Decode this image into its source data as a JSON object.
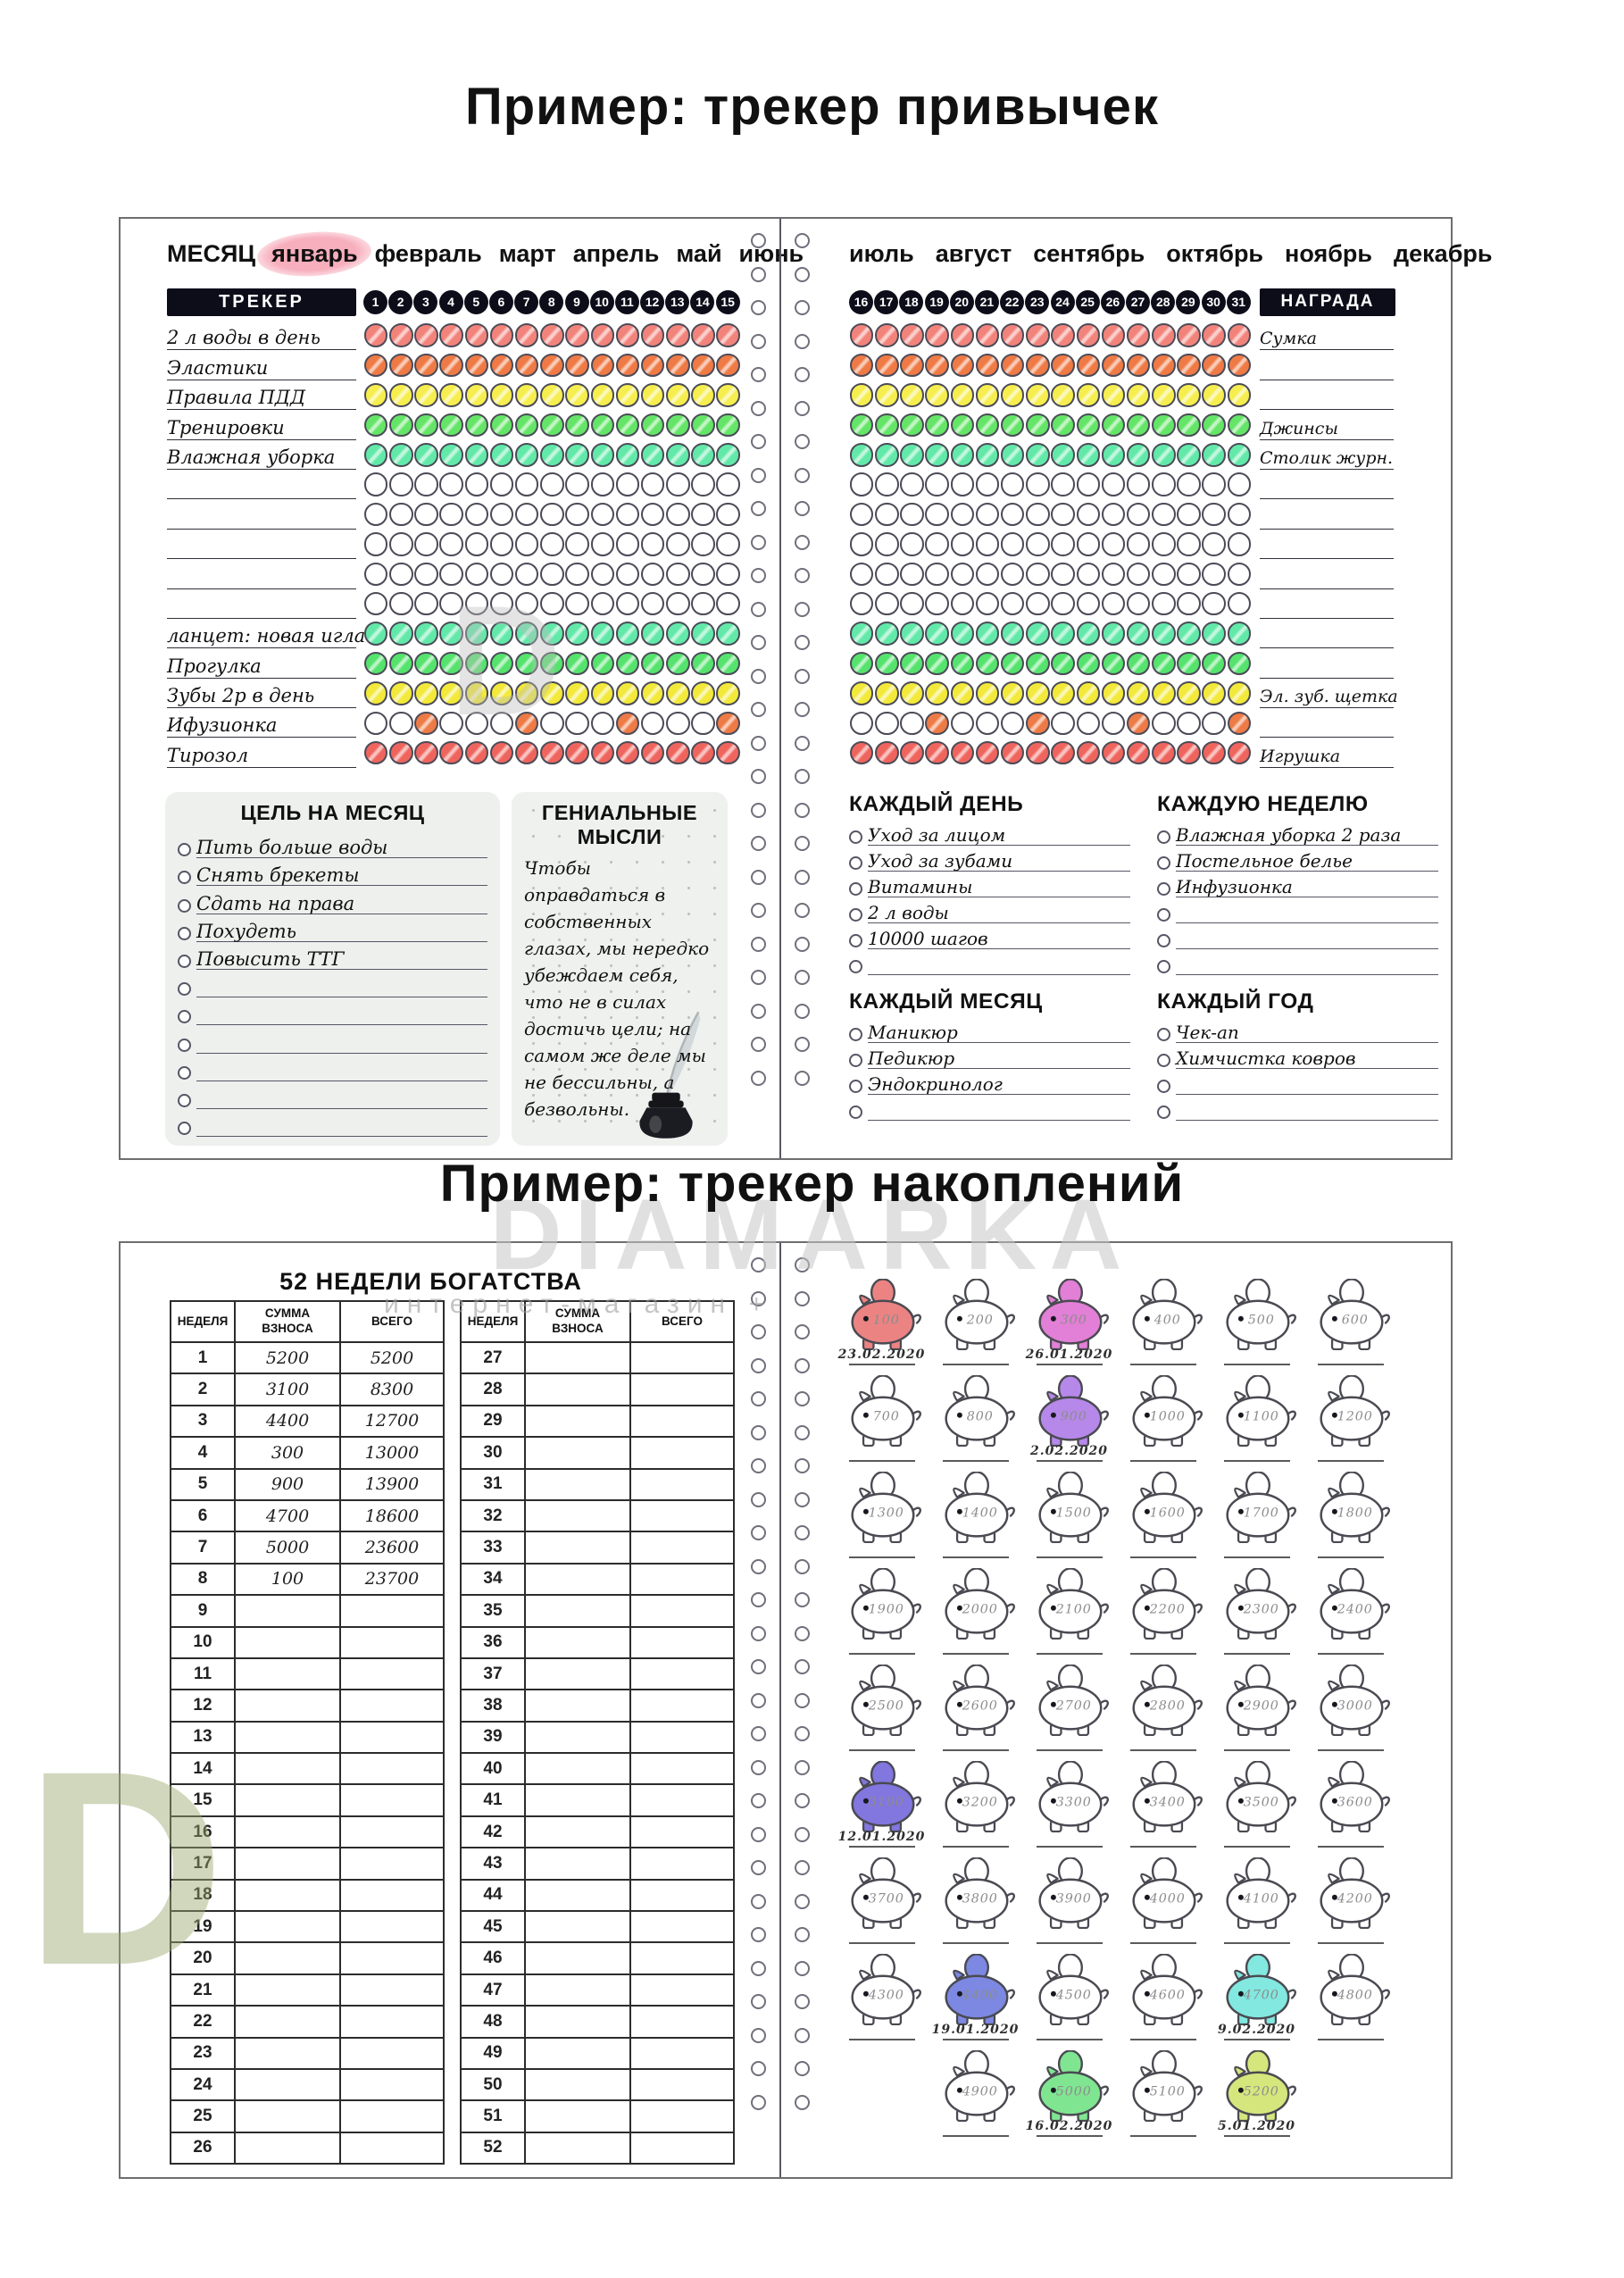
{
  "titles": {
    "habit": "Пример: трекер привычек",
    "savings": "Пример: трекер накоплений"
  },
  "watermarks": {
    "big": "DIAMARKA",
    "small": "интернет-магазин +",
    "letter": "D"
  },
  "habit": {
    "month_label": "МЕСЯЦ",
    "highlight_month": "январь",
    "months_left": [
      "январь",
      "февраль",
      "март",
      "апрель",
      "май",
      "июнь"
    ],
    "months_right": [
      "июль",
      "август",
      "сентябрь",
      "октябрь",
      "ноябрь",
      "декабрь"
    ],
    "tracker_label": "ТРЕКЕР",
    "reward_label": "НАГРАДА",
    "days_left": [
      1,
      15
    ],
    "days_right": [
      16,
      31
    ],
    "rows": [
      {
        "label": "2 л воды в день",
        "color": "#f2837b",
        "left": "all",
        "right": "all",
        "reward": "Сумка"
      },
      {
        "label": "Эластики",
        "color": "#ef7a45",
        "left": "all",
        "right": "all",
        "reward": ""
      },
      {
        "label": "Правила ПДД",
        "color": "#f6ee4e",
        "left": "all",
        "right": "all",
        "reward": ""
      },
      {
        "label": "Тренировки",
        "color": "#64e567",
        "left": "all",
        "right": "all",
        "reward": "Джинсы"
      },
      {
        "label": "Влажная уборка",
        "color": "#62e9a9",
        "left": "all",
        "right": "all",
        "reward": "Столик журн."
      },
      {
        "label": "",
        "color": "",
        "left": "none",
        "right": "none",
        "reward": ""
      },
      {
        "label": "",
        "color": "",
        "left": "none",
        "right": "none",
        "reward": ""
      },
      {
        "label": "",
        "color": "",
        "left": "none",
        "right": "none",
        "reward": ""
      },
      {
        "label": "",
        "color": "",
        "left": "none",
        "right": "none",
        "reward": ""
      },
      {
        "label": "",
        "color": "",
        "left": "none",
        "right": "none",
        "reward": ""
      },
      {
        "label": "ланцет: новая игла",
        "color": "#62e9a9",
        "left": "all",
        "right": "all",
        "reward": ""
      },
      {
        "label": "Прогулка",
        "color": "#55e36e",
        "left": "all",
        "right": "all",
        "reward": ""
      },
      {
        "label": "Зубы 2р в день",
        "color": "#f2e93a",
        "left": "all",
        "right": "all",
        "reward": "Эл. зуб. щетка"
      },
      {
        "label": "Ифузионка",
        "color": "#ee7a45",
        "left": [
          3,
          7,
          11,
          15
        ],
        "right": [
          19,
          23,
          27,
          31
        ],
        "reward": ""
      },
      {
        "label": "Тирозол",
        "color": "#ef655e",
        "left": "all",
        "right": "all",
        "reward": "Игрушка"
      }
    ],
    "goal": {
      "title": "ЦЕЛЬ НА МЕСЯЦ",
      "items": [
        "Пить больше воды",
        "Снять брекеты",
        "Сдать на права",
        "Похудеть",
        "Повысить ТТГ",
        "",
        "",
        "",
        "",
        "",
        ""
      ]
    },
    "thoughts": {
      "title": "ГЕНИАЛЬНЫЕ МЫСЛИ",
      "text": "Чтобы оправдаться в собственных глазах, мы нередко убеждаем себя, что не в силах достичь цели; на самом же деле мы не бессильны, а безвольны."
    },
    "daily": {
      "title": "КАЖДЫЙ ДЕНЬ",
      "items": [
        "Уход за лицом",
        "Уход за зубами",
        "Витамины",
        "2 л воды",
        "10000 шагов",
        ""
      ]
    },
    "weekly": {
      "title": "КАЖДУЮ НЕДЕЛЮ",
      "items": [
        "Влажная уборка 2 раза",
        "Постельное белье",
        "Инфузионка",
        "",
        "",
        ""
      ]
    },
    "monthly": {
      "title": "КАЖДЫЙ МЕСЯЦ",
      "items": [
        "Маникюр",
        "Педикюр",
        "Эндокринолог",
        ""
      ]
    },
    "yearly": {
      "title": "КАЖДЫЙ ГОД",
      "items": [
        "Чек-ап",
        "Химчистка ковров",
        "",
        ""
      ]
    }
  },
  "savings": {
    "title": "52 НЕДЕЛИ БОГАТСТВА",
    "headers": [
      "НЕДЕЛЯ",
      "СУММА ВЗНОСА",
      "ВСЕГО"
    ],
    "table1_weeks": [
      1,
      26
    ],
    "table2_weeks": [
      27,
      52
    ],
    "filled_weeks": [
      {
        "week": 1,
        "deposit": "5200",
        "total": "5200"
      },
      {
        "week": 2,
        "deposit": "3100",
        "total": "8300"
      },
      {
        "week": 3,
        "deposit": "4400",
        "total": "12700"
      },
      {
        "week": 4,
        "deposit": "300",
        "total": "13000"
      },
      {
        "week": 5,
        "deposit": "900",
        "total": "13900"
      },
      {
        "week": 6,
        "deposit": "4700",
        "total": "18600"
      },
      {
        "week": 7,
        "deposit": "5000",
        "total": "23600"
      },
      {
        "week": 8,
        "deposit": "100",
        "total": "23700"
      }
    ],
    "pigs": [
      {
        "amount": "100",
        "color": "#ec8383",
        "date": "23.02.2020"
      },
      {
        "amount": "200"
      },
      {
        "amount": "300",
        "color": "#e27fd6",
        "date": "26.01.2020"
      },
      {
        "amount": "400"
      },
      {
        "amount": "500"
      },
      {
        "amount": "600"
      },
      {
        "amount": "700"
      },
      {
        "amount": "800"
      },
      {
        "amount": "900",
        "color": "#b688ea",
        "date": "2.02.2020"
      },
      {
        "amount": "1000"
      },
      {
        "amount": "1100"
      },
      {
        "amount": "1200"
      },
      {
        "amount": "1300"
      },
      {
        "amount": "1400"
      },
      {
        "amount": "1500"
      },
      {
        "amount": "1600"
      },
      {
        "amount": "1700"
      },
      {
        "amount": "1800"
      },
      {
        "amount": "1900"
      },
      {
        "amount": "2000"
      },
      {
        "amount": "2100"
      },
      {
        "amount": "2200"
      },
      {
        "amount": "2300"
      },
      {
        "amount": "2400"
      },
      {
        "amount": "2500"
      },
      {
        "amount": "2600"
      },
      {
        "amount": "2700"
      },
      {
        "amount": "2800"
      },
      {
        "amount": "2900"
      },
      {
        "amount": "3000"
      },
      {
        "amount": "3100",
        "color": "#8276df",
        "date": "12.01.2020"
      },
      {
        "amount": "3200"
      },
      {
        "amount": "3300"
      },
      {
        "amount": "3400"
      },
      {
        "amount": "3500"
      },
      {
        "amount": "3600"
      },
      {
        "amount": "3700"
      },
      {
        "amount": "3800"
      },
      {
        "amount": "3900"
      },
      {
        "amount": "4000"
      },
      {
        "amount": "4100"
      },
      {
        "amount": "4200"
      },
      {
        "amount": "4300"
      },
      {
        "amount": "4400",
        "color": "#7c88e2",
        "date": "19.01.2020"
      },
      {
        "amount": "4500"
      },
      {
        "amount": "4600"
      },
      {
        "amount": "4700",
        "color": "#82e8e0",
        "date": "9.02.2020"
      },
      {
        "amount": "4800"
      },
      {
        "amount": "4900"
      },
      {
        "amount": "5000",
        "color": "#80e591",
        "date": "16.02.2020"
      },
      {
        "amount": "5100"
      },
      {
        "amount": "5200",
        "color": "#d5e67d",
        "date": "5.01.2020"
      }
    ]
  }
}
